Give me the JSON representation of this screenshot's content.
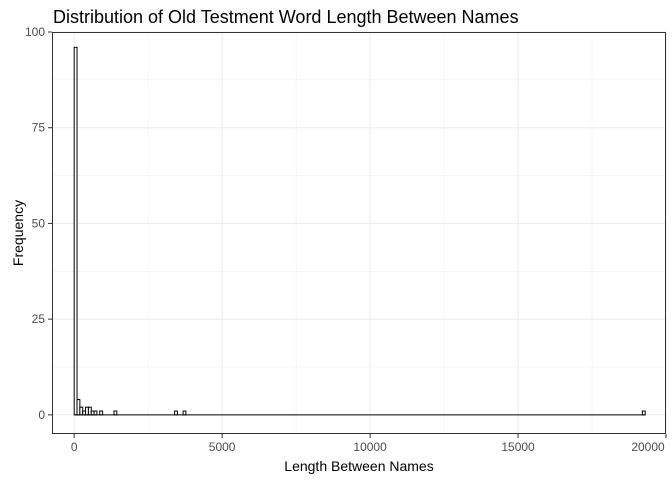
{
  "chart_data": {
    "type": "bar",
    "title": "Distribution of Old Testment Word Length Between Names",
    "xlabel": "Length Between Names",
    "ylabel": "Frequency",
    "xlim": [
      -750,
      20000
    ],
    "ylim": [
      -5,
      100
    ],
    "x_ticks": [
      0,
      5000,
      10000,
      15000,
      20000
    ],
    "y_ticks": [
      0,
      25,
      50,
      75,
      100
    ],
    "grid": true,
    "bin_width": 96,
    "bins": [
      {
        "x": 48,
        "count": 96
      },
      {
        "x": 144,
        "count": 4
      },
      {
        "x": 240,
        "count": 2
      },
      {
        "x": 336,
        "count": 1
      },
      {
        "x": 432,
        "count": 2
      },
      {
        "x": 528,
        "count": 2
      },
      {
        "x": 624,
        "count": 1
      },
      {
        "x": 720,
        "count": 1
      },
      {
        "x": 912,
        "count": 1
      },
      {
        "x": 1392,
        "count": 1
      },
      {
        "x": 3440,
        "count": 1
      },
      {
        "x": 3728,
        "count": 1
      },
      {
        "x": 19250,
        "count": 1
      }
    ]
  }
}
